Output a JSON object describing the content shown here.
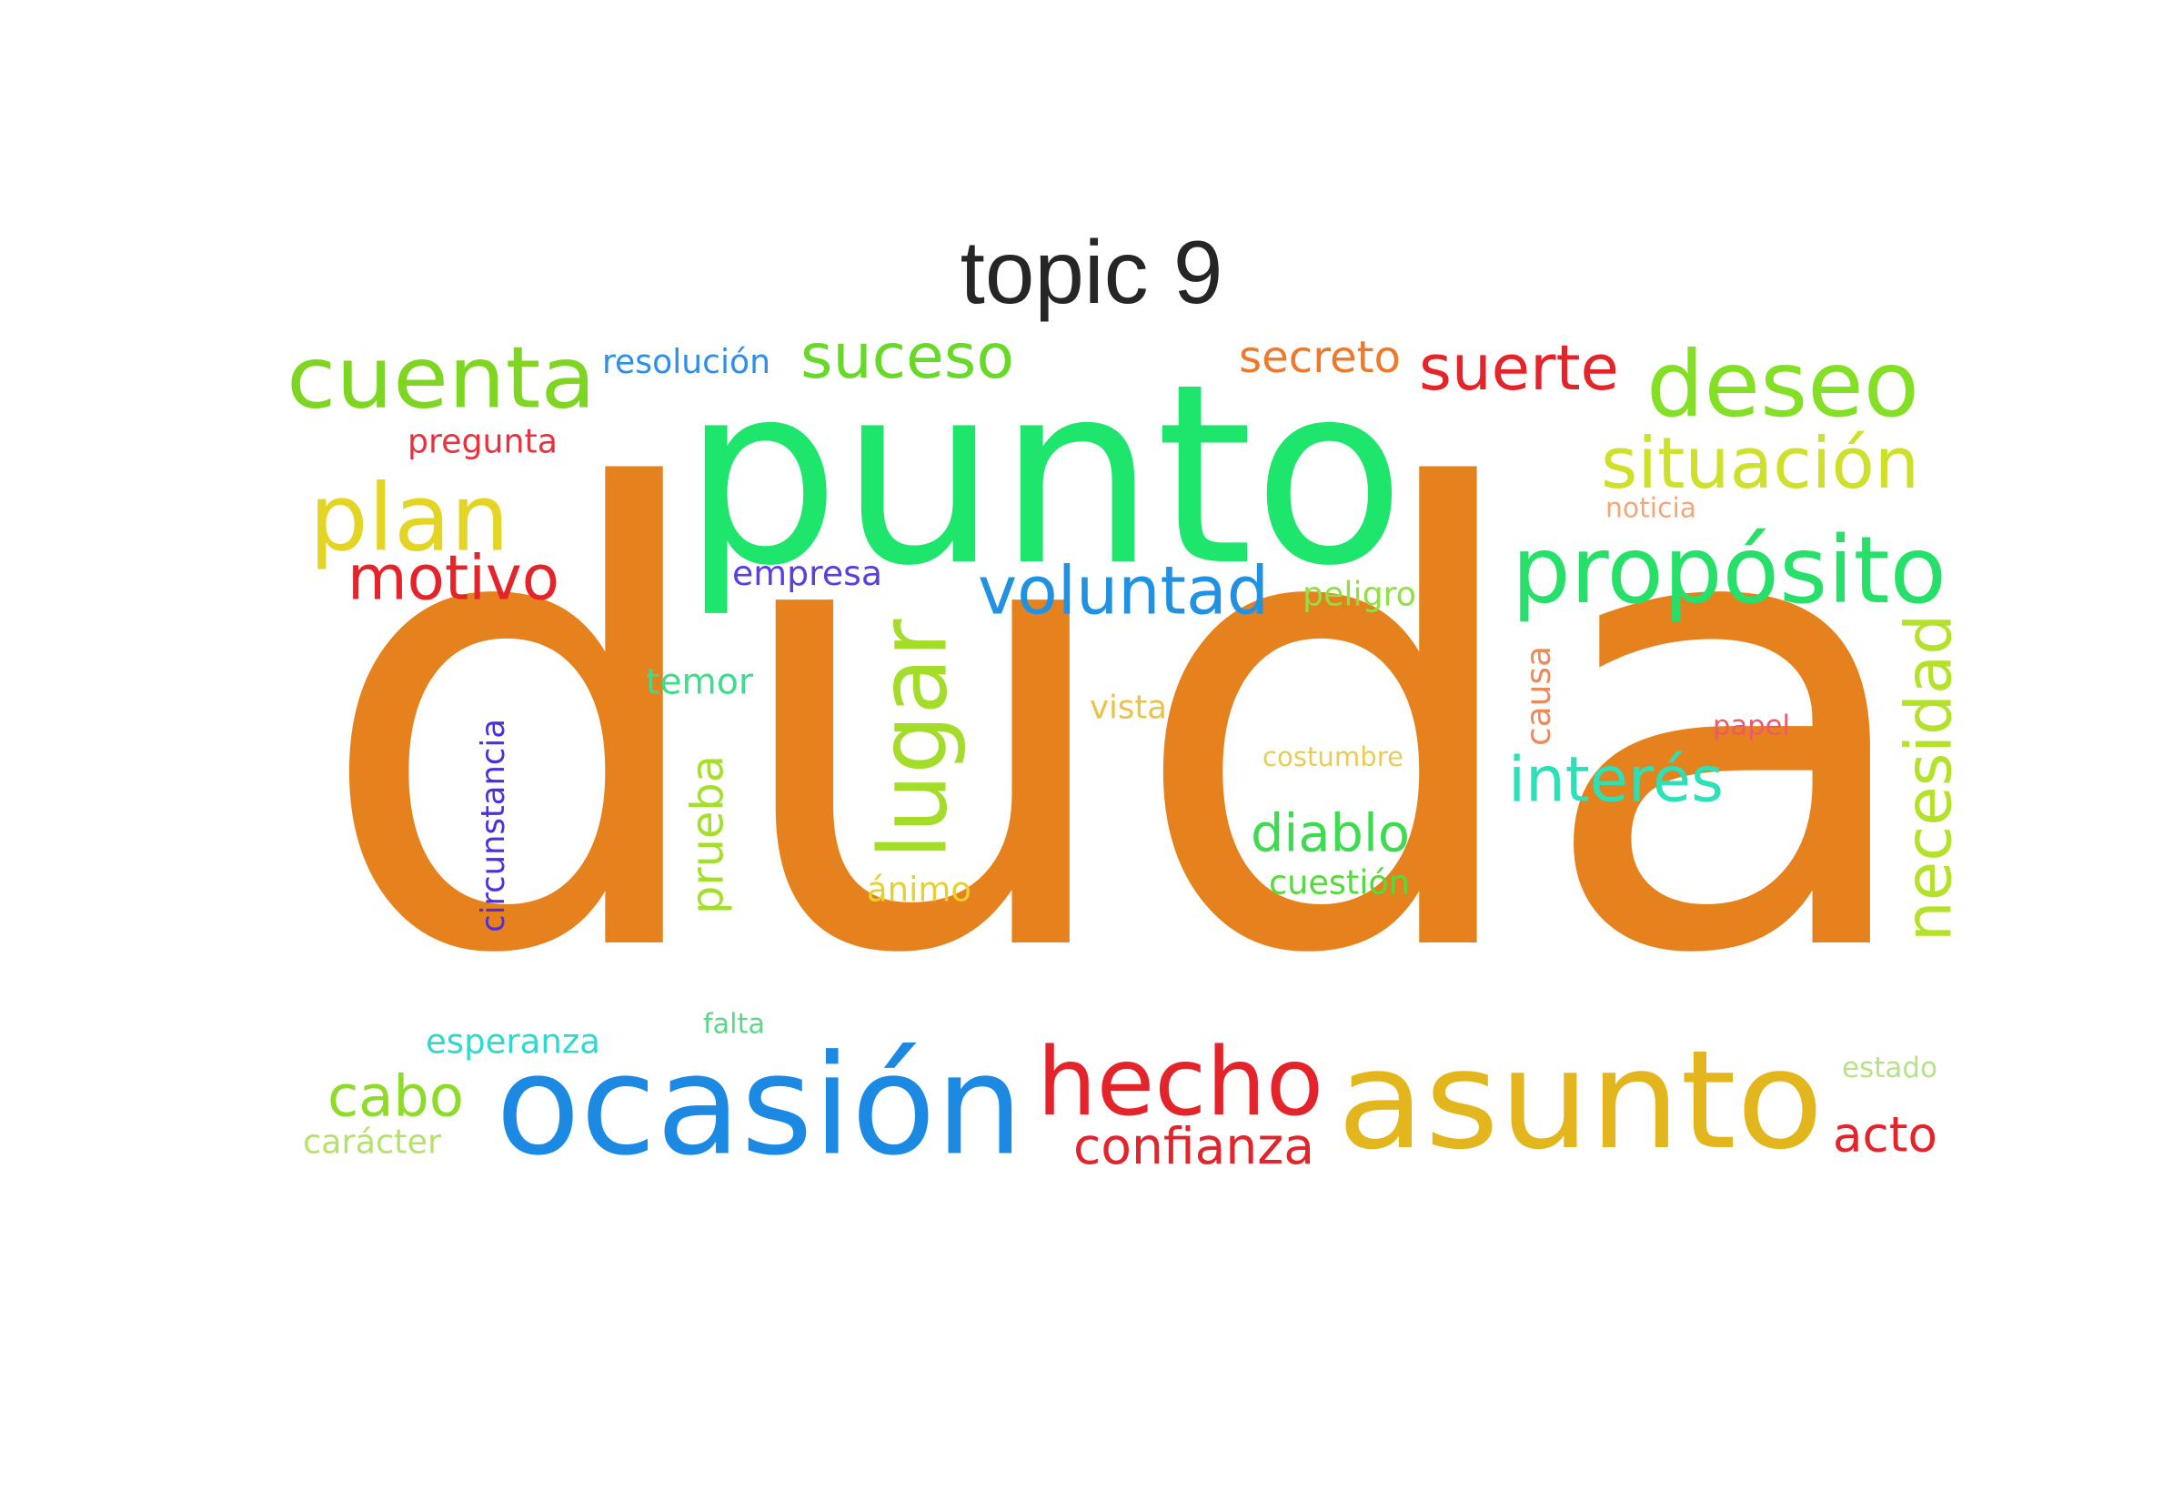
{
  "title": "topic 9",
  "words": [
    {
      "text": "duda",
      "color": "#e5821d",
      "orientation": "horizontal"
    },
    {
      "text": "punto",
      "color": "#1ee66c",
      "orientation": "horizontal"
    },
    {
      "text": "ocasión",
      "color": "#1c8ae2",
      "orientation": "horizontal"
    },
    {
      "text": "asunto",
      "color": "#e3b61e",
      "orientation": "horizontal"
    },
    {
      "text": "hecho",
      "color": "#e3242b",
      "orientation": "horizontal"
    },
    {
      "text": "propósito",
      "color": "#27e06a",
      "orientation": "horizontal"
    },
    {
      "text": "cuenta",
      "color": "#7fd622",
      "orientation": "horizontal"
    },
    {
      "text": "deseo",
      "color": "#83e024",
      "orientation": "horizontal"
    },
    {
      "text": "plan",
      "color": "#e4d524",
      "orientation": "horizontal"
    },
    {
      "text": "lugar",
      "color": "#a4dc2a",
      "orientation": "vertical"
    },
    {
      "text": "voluntad",
      "color": "#2191e2",
      "orientation": "horizontal"
    },
    {
      "text": "situación",
      "color": "#cfe02a",
      "orientation": "horizontal"
    },
    {
      "text": "necesidad",
      "color": "#b4e22a",
      "orientation": "vertical"
    },
    {
      "text": "suceso",
      "color": "#67da27",
      "orientation": "horizontal"
    },
    {
      "text": "suerte",
      "color": "#e3242b",
      "orientation": "horizontal"
    },
    {
      "text": "motivo",
      "color": "#e3242b",
      "orientation": "horizontal"
    },
    {
      "text": "interés",
      "color": "#2ce0b8",
      "orientation": "horizontal"
    },
    {
      "text": "diablo",
      "color": "#3ddb4e",
      "orientation": "horizontal"
    },
    {
      "text": "cabo",
      "color": "#8fdb2a",
      "orientation": "horizontal"
    },
    {
      "text": "confianza",
      "color": "#e3242b",
      "orientation": "horizontal"
    },
    {
      "text": "secreto",
      "color": "#ec7a2a",
      "orientation": "horizontal"
    },
    {
      "text": "acto",
      "color": "#e3242b",
      "orientation": "horizontal"
    },
    {
      "text": "prueba",
      "color": "#a4df2a",
      "orientation": "vertical"
    },
    {
      "text": "circunstancia",
      "color": "#4d2fe0",
      "orientation": "vertical"
    },
    {
      "text": "cuestión",
      "color": "#55db3c",
      "orientation": "horizontal"
    },
    {
      "text": "resolución",
      "color": "#2e8fe8",
      "orientation": "horizontal"
    },
    {
      "text": "empresa",
      "color": "#5a3ee0",
      "orientation": "horizontal"
    },
    {
      "text": "esperanza",
      "color": "#2fd8d0",
      "orientation": "horizontal"
    },
    {
      "text": "pregunta",
      "color": "#e8333f",
      "orientation": "horizontal"
    },
    {
      "text": "peligro",
      "color": "#8fdf45",
      "orientation": "horizontal"
    },
    {
      "text": "temor",
      "color": "#3fdc8c",
      "orientation": "horizontal"
    },
    {
      "text": "ánimo",
      "color": "#e8d030",
      "orientation": "horizontal"
    },
    {
      "text": "carácter",
      "color": "#b5e36a",
      "orientation": "horizontal"
    },
    {
      "text": "vista",
      "color": "#e8c24a",
      "orientation": "horizontal"
    },
    {
      "text": "causa",
      "color": "#ec8a5a",
      "orientation": "vertical"
    },
    {
      "text": "papel",
      "color": "#ec5a6a",
      "orientation": "horizontal"
    },
    {
      "text": "falta",
      "color": "#5ad88a",
      "orientation": "horizontal"
    },
    {
      "text": "costumbre",
      "color": "#e8cc5a",
      "orientation": "horizontal"
    },
    {
      "text": "estado",
      "color": "#b5e38a",
      "orientation": "horizontal"
    },
    {
      "text": "noticia",
      "color": "#f0a87a",
      "orientation": "horizontal"
    }
  ]
}
